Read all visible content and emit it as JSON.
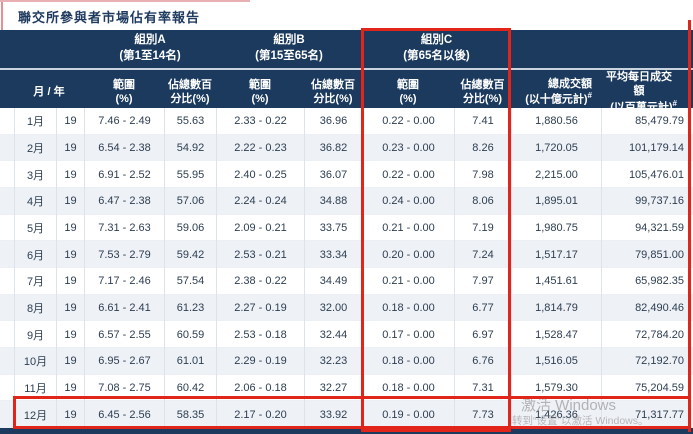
{
  "title": "聯交所參與者市場佔有率報告",
  "colors": {
    "header_navy": "#1b3a5e",
    "highlight_red": "#e1251b",
    "row_alt": "#eef1f6",
    "text_dark": "#2d3e50"
  },
  "table": {
    "groups": [
      {
        "name": "組別A",
        "range": "(第1至14名)"
      },
      {
        "name": "組別B",
        "range": "(第15至65名)"
      },
      {
        "name": "組別C",
        "range": "(第65名以後)"
      }
    ],
    "sub_headers": {
      "month_year": "月 / 年",
      "range_l1": "範圍",
      "range_l2": "(%)",
      "pct_l1": "佔總數百",
      "pct_l2": "分比(%)",
      "total_l1": "總成交額",
      "total_l2": "(以十億元計)",
      "total_sup": "#",
      "avg_l1": "平均每日成交額",
      "avg_l2": "(以百萬元計)",
      "avg_sup": "#"
    },
    "rows": [
      [
        "1月",
        "19",
        "7.46 - 2.49",
        "55.63",
        "2.33 - 0.22",
        "36.96",
        "0.22 - 0.00",
        "7.41",
        "1,880.56",
        "85,479.79"
      ],
      [
        "2月",
        "19",
        "6.54 - 2.38",
        "54.92",
        "2.22 - 0.23",
        "36.82",
        "0.23 - 0.00",
        "8.26",
        "1,720.05",
        "101,179.14"
      ],
      [
        "3月",
        "19",
        "6.91 - 2.52",
        "55.95",
        "2.40 - 0.25",
        "36.07",
        "0.22 - 0.00",
        "7.98",
        "2,215.00",
        "105,476.01"
      ],
      [
        "4月",
        "19",
        "6.47 - 2.38",
        "57.06",
        "2.24 - 0.24",
        "34.88",
        "0.24 - 0.00",
        "8.06",
        "1,895.01",
        "99,737.16"
      ],
      [
        "5月",
        "19",
        "7.31 - 2.63",
        "59.06",
        "2.09 - 0.21",
        "33.75",
        "0.21 - 0.00",
        "7.19",
        "1,980.75",
        "94,321.59"
      ],
      [
        "6月",
        "19",
        "7.53 - 2.79",
        "59.42",
        "2.53 - 0.21",
        "33.34",
        "0.20 - 0.00",
        "7.24",
        "1,517.17",
        "79,851.00"
      ],
      [
        "7月",
        "19",
        "7.17 - 2.46",
        "57.54",
        "2.38 - 0.22",
        "34.49",
        "0.21 - 0.00",
        "7.97",
        "1,451.61",
        "65,982.35"
      ],
      [
        "8月",
        "19",
        "6.61 - 2.41",
        "61.23",
        "2.27 - 0.19",
        "32.00",
        "0.18 - 0.00",
        "6.77",
        "1,814.79",
        "82,490.46"
      ],
      [
        "9月",
        "19",
        "6.57 - 2.55",
        "60.59",
        "2.53 - 0.18",
        "32.44",
        "0.17 - 0.00",
        "6.97",
        "1,528.47",
        "72,784.20"
      ],
      [
        "10月",
        "19",
        "6.95 - 2.67",
        "61.01",
        "2.29 - 0.19",
        "32.23",
        "0.18 - 0.00",
        "6.76",
        "1,516.05",
        "72,192.70"
      ],
      [
        "11月",
        "19",
        "7.08 - 2.75",
        "60.42",
        "2.06 - 0.18",
        "32.27",
        "0.18 - 0.00",
        "7.31",
        "1,579.30",
        "75,204.59"
      ],
      [
        "12月",
        "19",
        "6.45 - 2.56",
        "58.35",
        "2.17 - 0.20",
        "33.92",
        "0.19 - 0.00",
        "7.73",
        "1,426.36",
        "71,317.77"
      ]
    ]
  },
  "watermark": {
    "line1": "激活 Windows",
    "line2": "转到“设置”以激活 Windows。"
  }
}
